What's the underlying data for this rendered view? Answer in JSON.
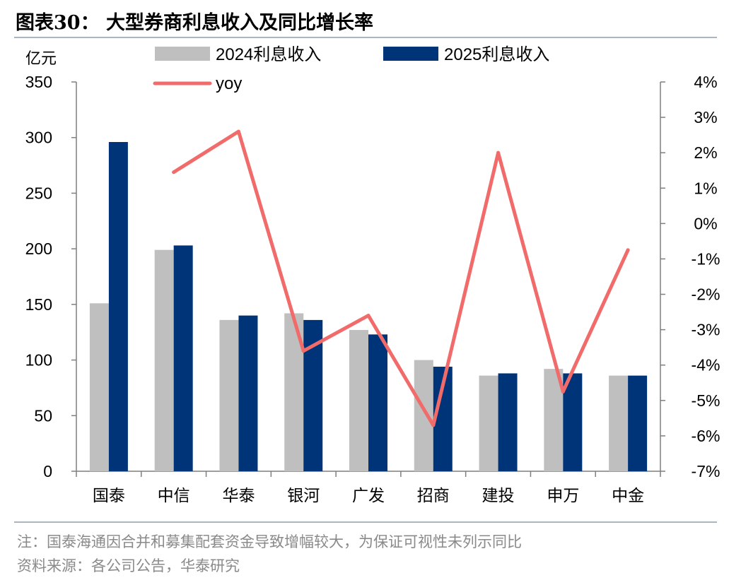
{
  "title": "图表30：  大型券商利息收入及同比增长率",
  "footer": {
    "note": "注：国泰海通因合并和募集配套资金导致增幅较大，为保证可视性未列示同比",
    "source": "资料来源：各公司公告，华泰研究"
  },
  "colors": {
    "series_2024": "#bfbfbf",
    "series_2025": "#003478",
    "yoy": "#f26b6b",
    "axis": "#7f7f7f",
    "rule": "#a9b6c2"
  },
  "chart_data": {
    "type": "bar",
    "title": "大型券商利息收入及同比增长率",
    "ylabel": "亿元",
    "ylim": [
      0,
      350
    ],
    "y_ticks": [
      "0",
      "50",
      "100",
      "150",
      "200",
      "250",
      "300",
      "350"
    ],
    "y2lim": [
      -0.07,
      0.04
    ],
    "y2_ticks": [
      "-7%",
      "-6%",
      "-5%",
      "-4%",
      "-3%",
      "-2%",
      "-1%",
      "0%",
      "1%",
      "2%",
      "3%",
      "4%"
    ],
    "categories": [
      "国泰",
      "中信",
      "华泰",
      "银河",
      "广发",
      "招商",
      "建投",
      "申万",
      "中金"
    ],
    "series": [
      {
        "name": "2024利息收入",
        "type": "bar",
        "axis": "left",
        "values": [
          151,
          199,
          136,
          142,
          127,
          100,
          86,
          92,
          86
        ]
      },
      {
        "name": "2025利息收入",
        "type": "bar",
        "axis": "left",
        "values": [
          296,
          203,
          140,
          136,
          123,
          94,
          88,
          88,
          86
        ]
      },
      {
        "name": "yoy",
        "type": "line",
        "axis": "right",
        "values": [
          null,
          0.0145,
          0.026,
          -0.036,
          -0.026,
          -0.057,
          0.02,
          -0.0475,
          -0.0075
        ]
      }
    ],
    "legend": "top-center",
    "grid": false
  }
}
